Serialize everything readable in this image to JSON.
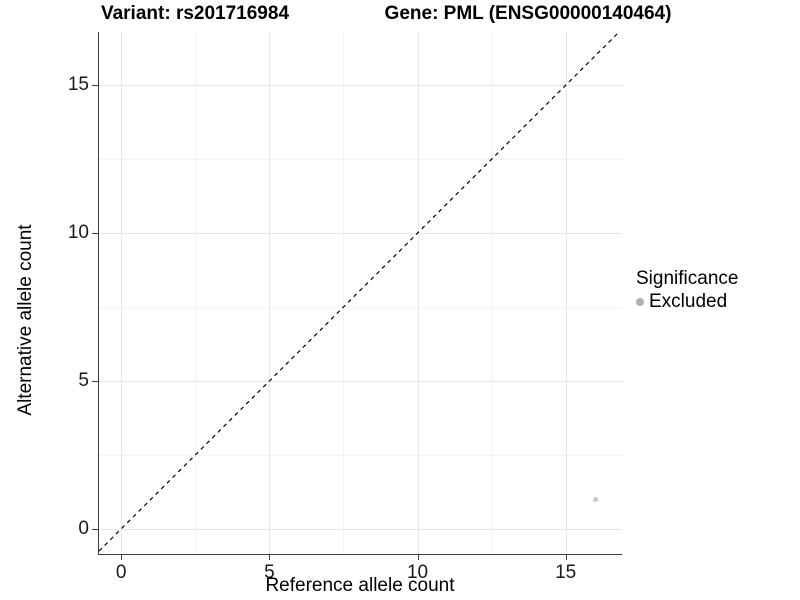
{
  "chart_data": {
    "type": "scatter",
    "title_left": "Variant: rs201716984",
    "title_right": "Gene: PML (ENSG00000140464)",
    "xlabel": "Reference allele count",
    "ylabel": "Alternative allele count",
    "xlim": [
      -0.75,
      16.9
    ],
    "ylim": [
      -0.85,
      16.8
    ],
    "xticks": [
      0,
      5,
      10,
      15
    ],
    "yticks": [
      0,
      5,
      10,
      15
    ],
    "minor_xticks": [
      2.5,
      7.5,
      12.5
    ],
    "minor_yticks": [
      2.5,
      7.5,
      12.5
    ],
    "grid": true,
    "reference_line": {
      "type": "identity",
      "slope": 1,
      "intercept": 0,
      "style": "dashed",
      "color": "#000000"
    },
    "series": [
      {
        "name": "Excluded",
        "color": "#c9c9c9",
        "points": [
          {
            "x": 16,
            "y": 1
          }
        ]
      }
    ],
    "legend": {
      "title": "Significance",
      "position": "right",
      "entries": [
        {
          "label": "Excluded",
          "color": "#aeaeae"
        }
      ]
    },
    "colors": {
      "axis_line": "#3d3d3d",
      "grid_major": "#e7e7e7",
      "grid_minor": "#f2f2f2",
      "background": "#ffffff"
    }
  }
}
